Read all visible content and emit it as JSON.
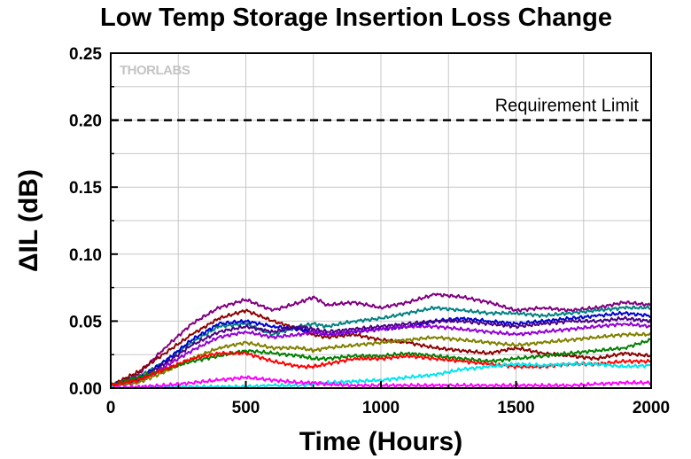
{
  "chart_data": {
    "type": "line",
    "title": "Low Temp Storage Insertion Loss Change",
    "xlabel": "Time (Hours)",
    "ylabel": "ΔIL (dB)",
    "xlim": [
      0,
      2000
    ],
    "ylim": [
      0,
      0.25
    ],
    "xticks": [
      "0",
      "500",
      "1000",
      "1500",
      "2000"
    ],
    "yticks": [
      "0.00",
      "0.05",
      "0.10",
      "0.15",
      "0.20",
      "0.25"
    ],
    "grid": true,
    "watermark": "THORLABS",
    "reference_line": {
      "label": "Requirement Limit",
      "y": 0.2,
      "style": "dashed"
    },
    "series": [
      {
        "color": "#800080",
        "x": [
          0,
          100,
          200,
          300,
          400,
          500,
          600,
          700,
          750,
          800,
          900,
          1000,
          1100,
          1200,
          1300,
          1400,
          1500,
          1600,
          1700,
          1800,
          1900,
          2000
        ],
        "y": [
          0.002,
          0.01,
          0.03,
          0.048,
          0.06,
          0.066,
          0.058,
          0.064,
          0.068,
          0.062,
          0.064,
          0.06,
          0.064,
          0.07,
          0.068,
          0.064,
          0.058,
          0.06,
          0.058,
          0.06,
          0.064,
          0.062
        ]
      },
      {
        "color": "#008080",
        "x": [
          0,
          100,
          200,
          300,
          400,
          500,
          600,
          700,
          750,
          800,
          900,
          1000,
          1100,
          1200,
          1300,
          1400,
          1500,
          1600,
          1700,
          1800,
          1900,
          2000
        ],
        "y": [
          0.002,
          0.008,
          0.02,
          0.034,
          0.046,
          0.048,
          0.04,
          0.046,
          0.048,
          0.046,
          0.05,
          0.052,
          0.056,
          0.06,
          0.058,
          0.056,
          0.056,
          0.054,
          0.056,
          0.058,
          0.06,
          0.06
        ]
      },
      {
        "color": "#8B0000",
        "x": [
          0,
          100,
          200,
          300,
          400,
          500,
          600,
          700,
          750,
          800,
          900,
          1000,
          1100,
          1200,
          1300,
          1400,
          1500,
          1600,
          1700,
          1800,
          1900,
          2000
        ],
        "y": [
          0.002,
          0.012,
          0.026,
          0.04,
          0.052,
          0.058,
          0.05,
          0.044,
          0.04,
          0.038,
          0.04,
          0.036,
          0.034,
          0.03,
          0.028,
          0.026,
          0.03,
          0.026,
          0.024,
          0.022,
          0.026,
          0.024
        ]
      },
      {
        "color": "#0000CD",
        "x": [
          0,
          100,
          200,
          300,
          400,
          500,
          600,
          700,
          750,
          800,
          900,
          1000,
          1100,
          1200,
          1300,
          1400,
          1500,
          1600,
          1700,
          1800,
          1900,
          2000
        ],
        "y": [
          0.002,
          0.006,
          0.02,
          0.036,
          0.048,
          0.05,
          0.046,
          0.044,
          0.042,
          0.04,
          0.042,
          0.044,
          0.046,
          0.05,
          0.052,
          0.05,
          0.048,
          0.05,
          0.052,
          0.054,
          0.056,
          0.054
        ]
      },
      {
        "color": "#4B0082",
        "x": [
          0,
          100,
          200,
          300,
          400,
          500,
          600,
          700,
          750,
          800,
          900,
          1000,
          1100,
          1200,
          1300,
          1400,
          1500,
          1600,
          1700,
          1800,
          1900,
          2000
        ],
        "y": [
          0.002,
          0.006,
          0.018,
          0.032,
          0.042,
          0.046,
          0.042,
          0.046,
          0.044,
          0.042,
          0.044,
          0.046,
          0.048,
          0.05,
          0.05,
          0.048,
          0.046,
          0.048,
          0.05,
          0.05,
          0.052,
          0.05
        ]
      },
      {
        "color": "#9400D3",
        "x": [
          0,
          100,
          200,
          300,
          400,
          500,
          600,
          700,
          750,
          800,
          900,
          1000,
          1100,
          1200,
          1300,
          1400,
          1500,
          1600,
          1700,
          1800,
          1900,
          2000
        ],
        "y": [
          0.002,
          0.004,
          0.016,
          0.028,
          0.038,
          0.042,
          0.038,
          0.04,
          0.042,
          0.04,
          0.042,
          0.044,
          0.046,
          0.046,
          0.044,
          0.042,
          0.04,
          0.042,
          0.044,
          0.046,
          0.048,
          0.046
        ]
      },
      {
        "color": "#808000",
        "x": [
          0,
          100,
          200,
          300,
          400,
          500,
          600,
          700,
          750,
          800,
          900,
          1000,
          1100,
          1200,
          1300,
          1400,
          1500,
          1600,
          1700,
          1800,
          1900,
          2000
        ],
        "y": [
          0.002,
          0.004,
          0.012,
          0.022,
          0.03,
          0.034,
          0.03,
          0.03,
          0.028,
          0.03,
          0.032,
          0.034,
          0.036,
          0.038,
          0.036,
          0.034,
          0.032,
          0.034,
          0.036,
          0.038,
          0.04,
          0.04
        ]
      },
      {
        "color": "#008000",
        "x": [
          0,
          100,
          200,
          300,
          400,
          500,
          600,
          700,
          750,
          800,
          900,
          1000,
          1100,
          1200,
          1300,
          1400,
          1500,
          1600,
          1700,
          1800,
          1900,
          2000
        ],
        "y": [
          0.002,
          0.008,
          0.014,
          0.02,
          0.024,
          0.028,
          0.026,
          0.024,
          0.022,
          0.022,
          0.024,
          0.024,
          0.026,
          0.024,
          0.022,
          0.02,
          0.022,
          0.024,
          0.026,
          0.028,
          0.03,
          0.036
        ]
      },
      {
        "color": "#FF0000",
        "x": [
          0,
          100,
          200,
          300,
          400,
          500,
          600,
          700,
          750,
          800,
          900,
          1000,
          1100,
          1200,
          1300,
          1400,
          1500,
          1600,
          1700,
          1800,
          1900,
          2000
        ],
        "y": [
          0.002,
          0.006,
          0.014,
          0.022,
          0.026,
          0.026,
          0.02,
          0.016,
          0.016,
          0.018,
          0.022,
          0.022,
          0.024,
          0.022,
          0.02,
          0.018,
          0.016,
          0.016,
          0.018,
          0.018,
          0.02,
          0.02
        ]
      },
      {
        "color": "#00E5EE",
        "x": [
          0,
          100,
          200,
          300,
          400,
          500,
          600,
          700,
          750,
          800,
          900,
          1000,
          1100,
          1200,
          1300,
          1400,
          1500,
          1600,
          1700,
          1800,
          1900,
          2000
        ],
        "y": [
          0.0,
          0.0,
          0.001,
          0.001,
          0.001,
          0.001,
          0.002,
          0.002,
          0.003,
          0.004,
          0.005,
          0.006,
          0.008,
          0.01,
          0.014,
          0.016,
          0.018,
          0.017,
          0.018,
          0.018,
          0.016,
          0.017
        ]
      },
      {
        "color": "#FF00FF",
        "x": [
          0,
          100,
          200,
          300,
          400,
          500,
          600,
          700,
          750,
          800,
          900,
          1000,
          1100,
          1200,
          1300,
          1400,
          1500,
          1600,
          1700,
          1800,
          1900,
          2000
        ],
        "y": [
          0.0,
          0.001,
          0.002,
          0.004,
          0.006,
          0.008,
          0.006,
          0.004,
          0.004,
          0.003,
          0.002,
          0.002,
          0.002,
          0.002,
          0.002,
          0.002,
          0.002,
          0.002,
          0.002,
          0.003,
          0.004,
          0.004
        ]
      }
    ]
  }
}
